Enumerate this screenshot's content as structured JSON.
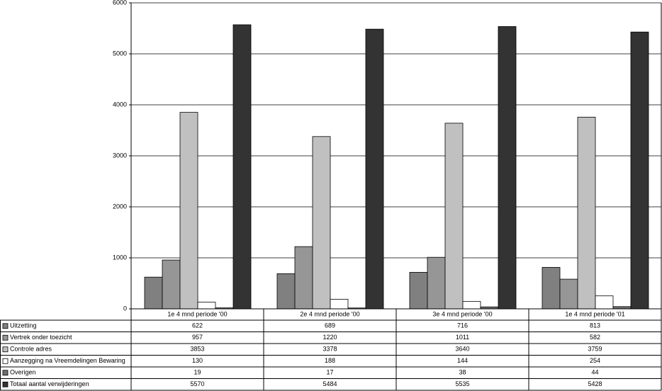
{
  "chart_data": {
    "type": "bar",
    "categories": [
      "1e 4 mnd periode '00",
      "2e 4 mnd periode '00",
      "3e 4 mnd periode '00",
      "1e 4 mnd periode '01"
    ],
    "series": [
      {
        "name": "Uitzetting",
        "color": "#808080",
        "values": [
          622,
          689,
          716,
          813
        ]
      },
      {
        "name": "Vertrek onder  toezicht",
        "color": "#969696",
        "values": [
          957,
          1220,
          1011,
          582
        ]
      },
      {
        "name": "Controle adres",
        "color": "#c0c0c0",
        "values": [
          3853,
          3378,
          3640,
          3759
        ]
      },
      {
        "name": "Aanzegging na  Vreemdelingen Bewaring",
        "color": "#ffffff",
        "values": [
          130,
          188,
          144,
          254
        ]
      },
      {
        "name": "Overigen",
        "color": "#707070",
        "values": [
          19,
          17,
          38,
          44
        ]
      },
      {
        "name": "Totaal aantal verwijderingen",
        "color": "#333333",
        "values": [
          5570,
          5484,
          5535,
          5428
        ]
      }
    ],
    "ylim": [
      0,
      6000
    ],
    "yticks": [
      0,
      1000,
      2000,
      3000,
      4000,
      5000,
      6000
    ],
    "grid": true
  }
}
